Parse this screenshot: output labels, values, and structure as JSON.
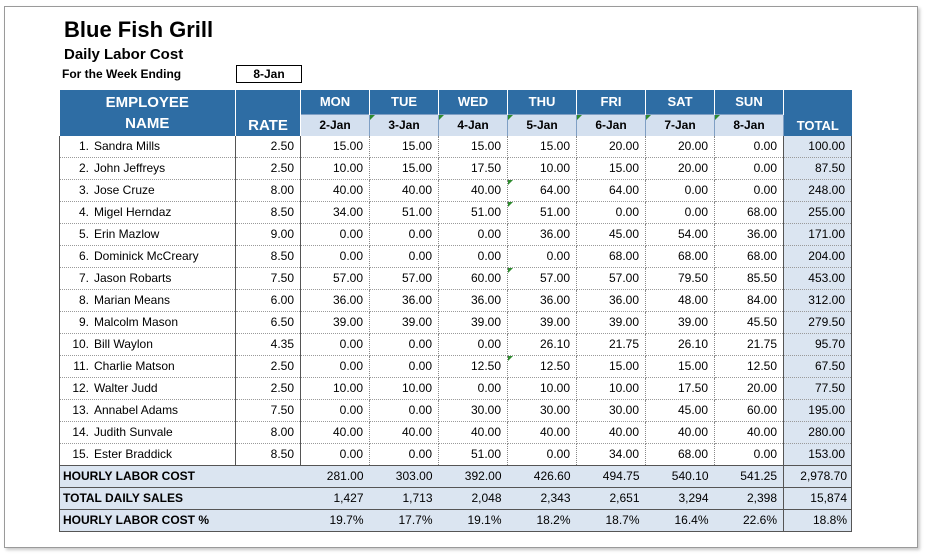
{
  "title": "Blue Fish Grill",
  "subtitle": "Daily Labor Cost",
  "week_label": "For the Week Ending",
  "week_value": "8-Jan",
  "headers": {
    "employee_line1": "EMPLOYEE",
    "employee_line2": "NAME",
    "rate": "RATE",
    "total": "TOTAL",
    "days": [
      {
        "day": "MON",
        "date": "2-Jan"
      },
      {
        "day": "TUE",
        "date": "3-Jan"
      },
      {
        "day": "WED",
        "date": "4-Jan"
      },
      {
        "day": "THU",
        "date": "5-Jan"
      },
      {
        "day": "FRI",
        "date": "6-Jan"
      },
      {
        "day": "SAT",
        "date": "7-Jan"
      },
      {
        "day": "SUN",
        "date": "8-Jan"
      }
    ]
  },
  "employees": [
    {
      "idx": "1.",
      "name": "Sandra Mills",
      "rate": "2.50",
      "days": [
        "15.00",
        "15.00",
        "15.00",
        "15.00",
        "20.00",
        "20.00",
        "0.00"
      ],
      "total": "100.00"
    },
    {
      "idx": "2.",
      "name": "John Jeffreys",
      "rate": "2.50",
      "days": [
        "10.00",
        "15.00",
        "17.50",
        "10.00",
        "15.00",
        "20.00",
        "0.00"
      ],
      "total": "87.50"
    },
    {
      "idx": "3.",
      "name": "Jose Cruze",
      "rate": "8.00",
      "days": [
        "40.00",
        "40.00",
        "40.00",
        "64.00",
        "64.00",
        "0.00",
        "0.00"
      ],
      "total": "248.00"
    },
    {
      "idx": "4.",
      "name": "Migel Herndaz",
      "rate": "8.50",
      "days": [
        "34.00",
        "51.00",
        "51.00",
        "51.00",
        "0.00",
        "0.00",
        "68.00"
      ],
      "total": "255.00"
    },
    {
      "idx": "5.",
      "name": "Erin Mazlow",
      "rate": "9.00",
      "days": [
        "0.00",
        "0.00",
        "0.00",
        "36.00",
        "45.00",
        "54.00",
        "36.00"
      ],
      "total": "171.00"
    },
    {
      "idx": "6.",
      "name": "Dominick McCreary",
      "rate": "8.50",
      "days": [
        "0.00",
        "0.00",
        "0.00",
        "0.00",
        "68.00",
        "68.00",
        "68.00"
      ],
      "total": "204.00"
    },
    {
      "idx": "7.",
      "name": "Jason Robarts",
      "rate": "7.50",
      "days": [
        "57.00",
        "57.00",
        "60.00",
        "57.00",
        "57.00",
        "79.50",
        "85.50"
      ],
      "total": "453.00"
    },
    {
      "idx": "8.",
      "name": "Marian Means",
      "rate": "6.00",
      "days": [
        "36.00",
        "36.00",
        "36.00",
        "36.00",
        "36.00",
        "48.00",
        "84.00"
      ],
      "total": "312.00"
    },
    {
      "idx": "9.",
      "name": "Malcolm Mason",
      "rate": "6.50",
      "days": [
        "39.00",
        "39.00",
        "39.00",
        "39.00",
        "39.00",
        "39.00",
        "45.50"
      ],
      "total": "279.50"
    },
    {
      "idx": "10.",
      "name": "Bill Waylon",
      "rate": "4.35",
      "days": [
        "0.00",
        "0.00",
        "0.00",
        "26.10",
        "21.75",
        "26.10",
        "21.75"
      ],
      "total": "95.70"
    },
    {
      "idx": "11.",
      "name": "Charlie Matson",
      "rate": "2.50",
      "days": [
        "0.00",
        "0.00",
        "12.50",
        "12.50",
        "15.00",
        "15.00",
        "12.50"
      ],
      "total": "67.50"
    },
    {
      "idx": "12.",
      "name": "Walter Judd",
      "rate": "2.50",
      "days": [
        "10.00",
        "10.00",
        "0.00",
        "10.00",
        "10.00",
        "17.50",
        "20.00"
      ],
      "total": "77.50"
    },
    {
      "idx": "13.",
      "name": "Annabel Adams",
      "rate": "7.50",
      "days": [
        "0.00",
        "0.00",
        "30.00",
        "30.00",
        "30.00",
        "45.00",
        "60.00"
      ],
      "total": "195.00"
    },
    {
      "idx": "14.",
      "name": "Judith Sunvale",
      "rate": "8.00",
      "days": [
        "40.00",
        "40.00",
        "40.00",
        "40.00",
        "40.00",
        "40.00",
        "40.00"
      ],
      "total": "280.00"
    },
    {
      "idx": "15.",
      "name": "Ester Braddick",
      "rate": "8.50",
      "days": [
        "0.00",
        "0.00",
        "51.00",
        "0.00",
        "34.00",
        "68.00",
        "0.00"
      ],
      "total": "153.00"
    }
  ],
  "summary": [
    {
      "label": "HOURLY LABOR COST",
      "days": [
        "281.00",
        "303.00",
        "392.00",
        "426.60",
        "494.75",
        "540.10",
        "541.25"
      ],
      "total": "2,978.70"
    },
    {
      "label": "TOTAL DAILY SALES",
      "days": [
        "1,427",
        "1,713",
        "2,048",
        "2,343",
        "2,651",
        "3,294",
        "2,398"
      ],
      "total": "15,874"
    },
    {
      "label": "HOURLY LABOR COST %",
      "days": [
        "19.7%",
        "17.7%",
        "19.1%",
        "18.2%",
        "18.7%",
        "16.4%",
        "22.6%"
      ],
      "total": "18.8%"
    }
  ],
  "colors": {
    "header_blue": "#2e6da4",
    "light_blue": "#dbe5f1",
    "indicator_green": "#2e8b2e"
  }
}
